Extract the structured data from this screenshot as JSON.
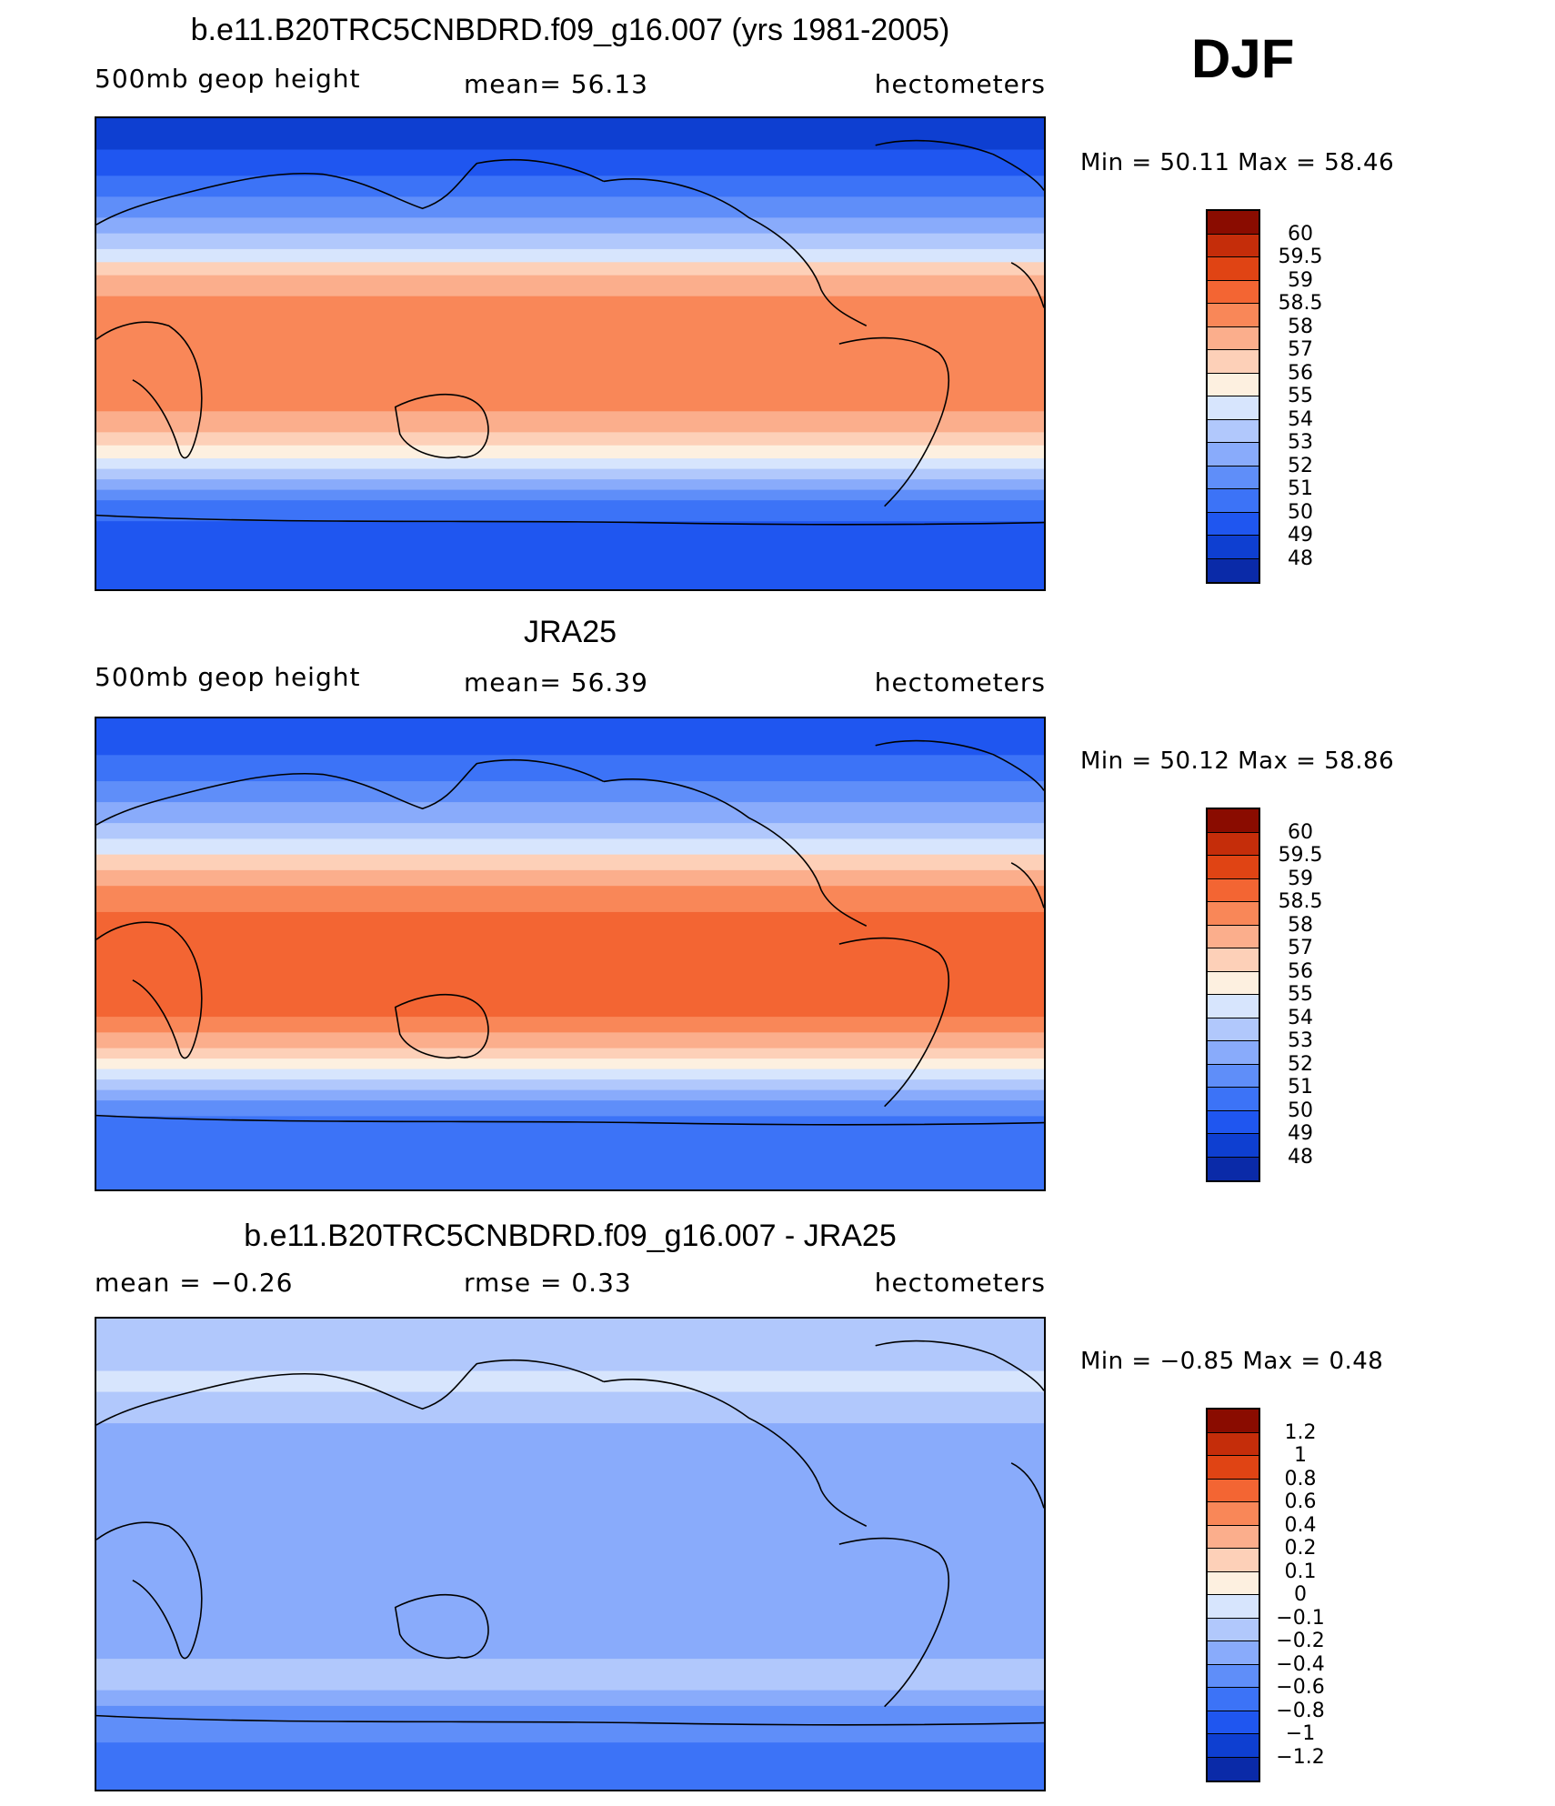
{
  "season": "DJF",
  "palette_main": [
    "#000080",
    "#0a2aa8",
    "#0e3fd1",
    "#1f56f0",
    "#3c73f7",
    "#5f8ef9",
    "#89abfb",
    "#b1c8fc",
    "#d7e5fd",
    "#fdf0e0",
    "#fdd0b8",
    "#fbae8c",
    "#f98758",
    "#f36533",
    "#e04414",
    "#c52d0a",
    "#8a0c00"
  ],
  "palette_diff": [
    "#000080",
    "#0a2aa8",
    "#0e3fd1",
    "#1f56f0",
    "#3c73f7",
    "#5f8ef9",
    "#89abfb",
    "#b1c8fc",
    "#d7e5fd",
    "#fdf0e0",
    "#fdd0b8",
    "#fbae8c",
    "#f98758",
    "#f36533",
    "#e04414",
    "#c52d0a",
    "#8a0c00"
  ],
  "panels": [
    {
      "title": "b.e11.B20TRC5CNBDRD.f09_g16.007 (yrs 1981-2005)",
      "left_label": "500mb  geop  height",
      "center_label": "mean=   56.13",
      "units": "hectometers",
      "min_max": "Min  =    50.11  Max  =    58.46",
      "colorbar_labels": [
        "60",
        "59.5",
        "59",
        "58.5",
        "58",
        "57",
        "56",
        "55",
        "54",
        "53",
        "52",
        "51",
        "50",
        "49",
        "48"
      ],
      "bands": [
        {
          "lat": 90,
          "level": 2
        },
        {
          "lat": 78,
          "level": 3
        },
        {
          "lat": 68,
          "level": 4
        },
        {
          "lat": 60,
          "level": 5
        },
        {
          "lat": 52,
          "level": 6
        },
        {
          "lat": 46,
          "level": 7
        },
        {
          "lat": 40,
          "level": 8
        },
        {
          "lat": 35,
          "level": 10
        },
        {
          "lat": 30,
          "level": 11
        },
        {
          "lat": 22,
          "level": 12
        },
        {
          "lat": -22,
          "level": 11
        },
        {
          "lat": -30,
          "level": 10
        },
        {
          "lat": -35,
          "level": 9
        },
        {
          "lat": -40,
          "level": 8
        },
        {
          "lat": -44,
          "level": 7
        },
        {
          "lat": -48,
          "level": 6
        },
        {
          "lat": -52,
          "level": 5
        },
        {
          "lat": -56,
          "level": 4
        },
        {
          "lat": -64,
          "level": 3
        }
      ]
    },
    {
      "title": "JRA25",
      "left_label": "500mb  geop  height",
      "center_label": "mean=   56.39",
      "units": "hectometers",
      "min_max": "Min  =    50.12  Max  =    58.86",
      "colorbar_labels": [
        "60",
        "59.5",
        "59",
        "58.5",
        "58",
        "57",
        "56",
        "55",
        "54",
        "53",
        "52",
        "51",
        "50",
        "49",
        "48"
      ],
      "bands": [
        {
          "lat": 90,
          "level": 3
        },
        {
          "lat": 76,
          "level": 4
        },
        {
          "lat": 66,
          "level": 5
        },
        {
          "lat": 58,
          "level": 6
        },
        {
          "lat": 50,
          "level": 7
        },
        {
          "lat": 44,
          "level": 8
        },
        {
          "lat": 38,
          "level": 10
        },
        {
          "lat": 32,
          "level": 11
        },
        {
          "lat": 26,
          "level": 12
        },
        {
          "lat": 16,
          "level": 13
        },
        {
          "lat": -24,
          "level": 12
        },
        {
          "lat": -30,
          "level": 11
        },
        {
          "lat": -36,
          "level": 10
        },
        {
          "lat": -40,
          "level": 9
        },
        {
          "lat": -44,
          "level": 8
        },
        {
          "lat": -48,
          "level": 7
        },
        {
          "lat": -52,
          "level": 6
        },
        {
          "lat": -56,
          "level": 5
        },
        {
          "lat": -62,
          "level": 4
        }
      ]
    },
    {
      "title": "b.e11.B20TRC5CNBDRD.f09_g16.007 - JRA25",
      "left_label": "mean  =    −0.26",
      "center_label": "rmse  =     0.33",
      "units": "hectometers",
      "min_max": "Min  =    −0.85  Max  =      0.48",
      "colorbar_labels": [
        "1.2",
        "1",
        "0.8",
        "0.6",
        "0.4",
        "0.2",
        "0.1",
        "0",
        "−0.1",
        "−0.2",
        "−0.4",
        "−0.6",
        "−0.8",
        "−1",
        "−1.2"
      ],
      "bands": [
        {
          "lat": 90,
          "level": 7
        },
        {
          "lat": 70,
          "level": 8
        },
        {
          "lat": 62,
          "level": 7
        },
        {
          "lat": 50,
          "level": 6
        },
        {
          "lat": -40,
          "level": 7
        },
        {
          "lat": -52,
          "level": 6
        },
        {
          "lat": -58,
          "level": 5
        },
        {
          "lat": -72,
          "level": 4
        }
      ]
    }
  ]
}
